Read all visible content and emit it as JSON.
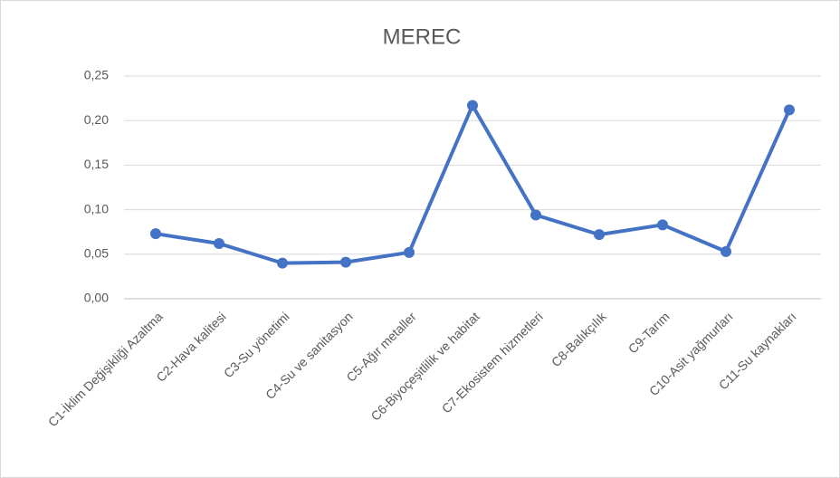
{
  "chart_data": {
    "type": "line",
    "title": "MEREC",
    "categories": [
      "C1-İklim Değişikliği Azaltma",
      "C2-Hava kalitesi",
      "C3-Su yönetimi",
      "C4-Su ve sanitasyon",
      "C5-Ağır metaller",
      "C6-Biyoçeşitlilik ve habitat",
      "C7-Ekosistem hizmetleri",
      "C8-Balıkçılık",
      "C9-Tarım",
      "C10-Asit yağmurları",
      "C11-Su kaynakları"
    ],
    "series": [
      {
        "name": "MEREC",
        "color": "#4472c4",
        "values": [
          0.073,
          0.062,
          0.04,
          0.041,
          0.052,
          0.217,
          0.094,
          0.072,
          0.083,
          0.053,
          0.212
        ]
      }
    ],
    "ylim": [
      0,
      0.25
    ],
    "yticks": [
      {
        "value": 0,
        "label": "0,00"
      },
      {
        "value": 0.05,
        "label": "0,05"
      },
      {
        "value": 0.1,
        "label": "0,10"
      },
      {
        "value": 0.15,
        "label": "0,15"
      },
      {
        "value": 0.2,
        "label": "0,20"
      },
      {
        "value": 0.25,
        "label": "0,25"
      }
    ],
    "grid": true
  }
}
